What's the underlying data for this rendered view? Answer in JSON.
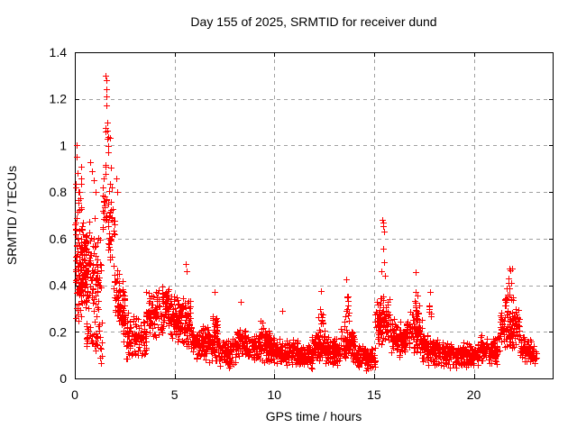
{
  "page": {
    "background": "#ffffff"
  },
  "chart_data": {
    "type": "scatter",
    "title": "Day 155 of 2025, SRMTID for receiver dund",
    "xlabel": "GPS time / hours",
    "ylabel": "SRMTID / TECUs",
    "xlim": [
      0,
      24
    ],
    "ylim": [
      0,
      1.4
    ],
    "xtick_values": [
      0,
      5,
      10,
      15,
      20
    ],
    "xtick_labels": [
      "0",
      "5",
      "10",
      "15",
      "20"
    ],
    "ytick_values": [
      0,
      0.2,
      0.4,
      0.6,
      0.8,
      1,
      1.2,
      1.4
    ],
    "ytick_labels": [
      "0",
      "0.2",
      "0.4",
      "0.6",
      "0.8",
      "1",
      "1.2",
      "1.4"
    ],
    "grid": true,
    "grid_style": "dashed",
    "legend": "none",
    "marker": "plus",
    "marker_size_px": 7,
    "colors": {
      "points": "#ff0000",
      "grid": "#a0a0a0",
      "axis": "#000000",
      "text": "#000000",
      "background": "#ffffff"
    },
    "description": "Dense red plus-marker scatter of SRMTID vs GPS time. High activity burst 0-1.3h (0.2-1.0 TECUs, max 1.0 at ~0.1h), tallest spike ~1.3 TECUs at ~1.6h, moderate bumps near 4-6h (~0.5), quiet midday baseline 0.05-0.25 with small columns at 7.0h (0.37), 8.3h (0.33), 12.3h (0.38), 13.6h (0.43), sharp spike 0.68 at ~15.5h, bumps 0.45 near 17.1h, late enhancement to 0.47 at ~21.8h, data ends ~23h.",
    "series": [
      {
        "name": "SRMTID",
        "seed": 20250155,
        "peak_points": [
          [
            0.07,
            1.0
          ],
          [
            0.1,
            0.95
          ],
          [
            0.12,
            0.88
          ],
          [
            0.05,
            0.82
          ],
          [
            0.02,
            0.66
          ],
          [
            0.03,
            0.62
          ],
          [
            0.75,
            0.93
          ],
          [
            0.85,
            0.89
          ],
          [
            0.95,
            0.85
          ],
          [
            1.05,
            0.8
          ],
          [
            1.55,
            1.3
          ],
          [
            1.58,
            1.28
          ],
          [
            1.56,
            1.24
          ],
          [
            1.6,
            1.21
          ],
          [
            1.57,
            1.17
          ],
          [
            1.62,
            1.1
          ],
          [
            1.63,
            1.03
          ],
          [
            1.66,
            0.97
          ],
          [
            1.52,
            0.91
          ],
          [
            2.08,
            0.86
          ],
          [
            2.12,
            0.8
          ],
          [
            5.55,
            0.49
          ],
          [
            5.6,
            0.46
          ],
          [
            7.02,
            0.37
          ],
          [
            8.32,
            0.33
          ],
          [
            10.38,
            0.29
          ],
          [
            12.32,
            0.375
          ],
          [
            13.62,
            0.425
          ],
          [
            15.42,
            0.68
          ],
          [
            15.47,
            0.67
          ],
          [
            15.45,
            0.655
          ],
          [
            15.5,
            0.63
          ],
          [
            15.44,
            0.555
          ],
          [
            15.52,
            0.5
          ],
          [
            15.38,
            0.46
          ],
          [
            15.56,
            0.44
          ],
          [
            17.1,
            0.455
          ],
          [
            17.8,
            0.37
          ],
          [
            21.78,
            0.47
          ],
          [
            21.84,
            0.465
          ],
          [
            21.9,
            0.47
          ],
          [
            21.72,
            0.43
          ],
          [
            21.88,
            0.41
          ],
          [
            21.8,
            0.385
          ]
        ],
        "clusters": [
          [
            0.02,
            0.35,
            70,
            0.55,
            0.55,
            0.4,
            0.2,
            1.0
          ],
          [
            0.05,
            0.6,
            45,
            0.42,
            0.4,
            0.2,
            0.15,
            0.72
          ],
          [
            0.35,
            1.3,
            120,
            0.55,
            0.42,
            0.26,
            0.12,
            0.88
          ],
          [
            0.55,
            1.4,
            40,
            0.18,
            0.15,
            0.1,
            0.06,
            0.34
          ],
          [
            1.4,
            2.0,
            55,
            0.72,
            0.6,
            0.2,
            0.42,
            1.02
          ],
          [
            1.48,
            1.95,
            12,
            0.98,
            0.92,
            0.16,
            0.78,
            1.24
          ],
          [
            1.95,
            2.65,
            85,
            0.38,
            0.22,
            0.16,
            0.07,
            0.66
          ],
          [
            2.6,
            3.6,
            95,
            0.19,
            0.16,
            0.11,
            0.05,
            0.42
          ],
          [
            3.55,
            4.6,
            110,
            0.28,
            0.3,
            0.12,
            0.08,
            0.5
          ],
          [
            4.55,
            5.3,
            100,
            0.3,
            0.24,
            0.11,
            0.08,
            0.47
          ],
          [
            5.3,
            5.85,
            70,
            0.27,
            0.23,
            0.12,
            0.08,
            0.52
          ],
          [
            5.85,
            7.2,
            130,
            0.16,
            0.14,
            0.08,
            0.04,
            0.32
          ],
          [
            6.9,
            7.18,
            22,
            0.24,
            0.22,
            0.09,
            0.08,
            0.36
          ],
          [
            7.2,
            8.1,
            90,
            0.11,
            0.11,
            0.07,
            0.02,
            0.25
          ],
          [
            8.1,
            8.6,
            60,
            0.17,
            0.15,
            0.08,
            0.05,
            0.32
          ],
          [
            8.6,
            10.2,
            160,
            0.13,
            0.13,
            0.075,
            0.03,
            0.29
          ],
          [
            9.3,
            9.8,
            28,
            0.19,
            0.17,
            0.08,
            0.08,
            0.3
          ],
          [
            10.2,
            11.2,
            110,
            0.12,
            0.11,
            0.07,
            0.03,
            0.27
          ],
          [
            11.2,
            11.9,
            80,
            0.09,
            0.09,
            0.055,
            0.02,
            0.19
          ],
          [
            11.9,
            12.6,
            85,
            0.14,
            0.13,
            0.08,
            0.04,
            0.28
          ],
          [
            12.2,
            12.45,
            12,
            0.27,
            0.25,
            0.08,
            0.15,
            0.37
          ],
          [
            12.6,
            13.3,
            80,
            0.12,
            0.12,
            0.065,
            0.03,
            0.24
          ],
          [
            13.3,
            14.05,
            85,
            0.16,
            0.14,
            0.08,
            0.05,
            0.33
          ],
          [
            13.52,
            13.75,
            12,
            0.29,
            0.27,
            0.09,
            0.17,
            0.42
          ],
          [
            14.05,
            15.05,
            105,
            0.1,
            0.08,
            0.06,
            0.02,
            0.21
          ],
          [
            15.05,
            15.8,
            80,
            0.24,
            0.27,
            0.12,
            0.08,
            0.48
          ],
          [
            15.8,
            16.6,
            90,
            0.19,
            0.15,
            0.085,
            0.05,
            0.34
          ],
          [
            16.6,
            17.4,
            90,
            0.2,
            0.19,
            0.095,
            0.06,
            0.4
          ],
          [
            16.95,
            17.25,
            12,
            0.32,
            0.31,
            0.08,
            0.2,
            0.45
          ],
          [
            17.4,
            18.2,
            85,
            0.13,
            0.12,
            0.075,
            0.03,
            0.3
          ],
          [
            17.7,
            17.9,
            6,
            0.29,
            0.29,
            0.06,
            0.2,
            0.365
          ],
          [
            18.2,
            20.2,
            195,
            0.1,
            0.1,
            0.06,
            0.02,
            0.235
          ],
          [
            20.2,
            21.3,
            110,
            0.12,
            0.12,
            0.07,
            0.03,
            0.29
          ],
          [
            21.3,
            22.3,
            105,
            0.21,
            0.21,
            0.105,
            0.06,
            0.41
          ],
          [
            21.55,
            22.05,
            16,
            0.34,
            0.33,
            0.09,
            0.24,
            0.465
          ],
          [
            22.3,
            23.0,
            75,
            0.14,
            0.1,
            0.065,
            0.03,
            0.27
          ],
          [
            22.95,
            23.15,
            14,
            0.11,
            0.09,
            0.05,
            0.04,
            0.18
          ]
        ]
      }
    ]
  }
}
